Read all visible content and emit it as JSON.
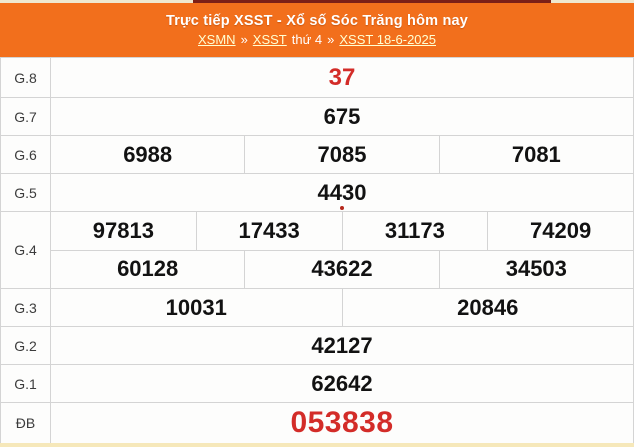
{
  "page": {
    "top_strip_color": "#efe8d0",
    "top_dark_segment_color": "#7c1f17",
    "bottom_strip_color": "#f6e8ba",
    "accent_orange": "#f26f1c",
    "accent_red": "#d32c28",
    "border_color": "#d4d4d4"
  },
  "header": {
    "title": "Trực tiếp XSST - Xổ số Sóc Trăng hôm nay",
    "breadcrumb": [
      {
        "label": "XSMN",
        "type": "link"
      },
      {
        "label": "»",
        "type": "sep"
      },
      {
        "label": "XSST",
        "type": "link"
      },
      {
        "label": "thứ 4",
        "type": "plain"
      },
      {
        "label": "»",
        "type": "sep"
      },
      {
        "label": "XSST 18-6-2025",
        "type": "link"
      }
    ]
  },
  "results_table": {
    "rows": [
      {
        "id": "g8",
        "label": "G.8",
        "groups": [
          [
            "37"
          ]
        ],
        "highlight": "red"
      },
      {
        "id": "g7",
        "label": "G.7",
        "groups": [
          [
            "675"
          ]
        ]
      },
      {
        "id": "g6",
        "label": "G.6",
        "groups": [
          [
            "6988",
            "7085",
            "7081"
          ]
        ]
      },
      {
        "id": "g5",
        "label": "G.5",
        "groups": [
          [
            "4430"
          ]
        ],
        "live_dot": true
      },
      {
        "id": "g4",
        "label": "G.4",
        "groups": [
          [
            "97813",
            "17433",
            "31173",
            "74209"
          ],
          [
            "60128",
            "43622",
            "34503"
          ]
        ]
      },
      {
        "id": "g3",
        "label": "G.3",
        "groups": [
          [
            "10031",
            "20846"
          ]
        ]
      },
      {
        "id": "g2",
        "label": "G.2",
        "groups": [
          [
            "42127"
          ]
        ]
      },
      {
        "id": "g1",
        "label": "G.1",
        "groups": [
          [
            "62642"
          ]
        ]
      },
      {
        "id": "db",
        "label": "ĐB",
        "groups": [
          [
            "053838"
          ]
        ],
        "highlight": "red"
      }
    ]
  }
}
